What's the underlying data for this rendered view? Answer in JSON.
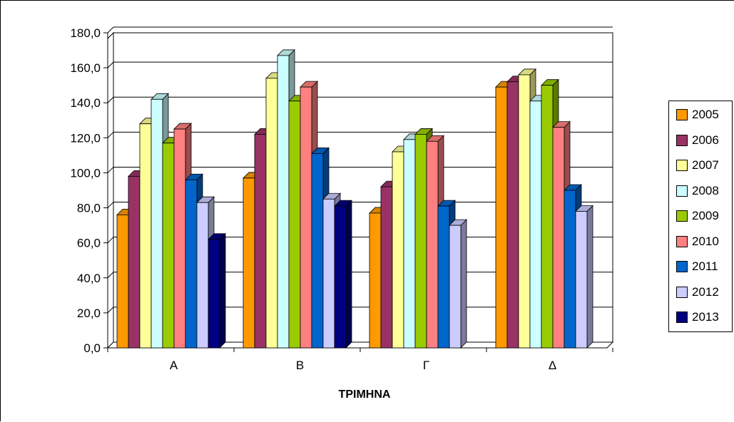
{
  "chart_data": {
    "type": "bar",
    "xlabel": "ΤΡΙΜΗΝΑ",
    "ylabel": "",
    "ylim": [
      0,
      180
    ],
    "yticks": [
      "0,0",
      "20,0",
      "40,0",
      "60,0",
      "80,0",
      "100,0",
      "120,0",
      "140,0",
      "160,0",
      "180,0"
    ],
    "categories": [
      "Α",
      "Β",
      "Γ",
      "Δ"
    ],
    "legend_position": "right",
    "grid": true,
    "series": [
      {
        "name": "2005",
        "color": "#FF9900",
        "values": [
          76,
          97,
          77,
          149
        ]
      },
      {
        "name": "2006",
        "color": "#993366",
        "values": [
          98,
          122,
          92,
          152
        ]
      },
      {
        "name": "2007",
        "color": "#FFFF99",
        "values": [
          128,
          154,
          112,
          156
        ]
      },
      {
        "name": "2008",
        "color": "#CCFFFF",
        "values": [
          142,
          167,
          119,
          141
        ]
      },
      {
        "name": "2009",
        "color": "#99CC00",
        "values": [
          117,
          141,
          122,
          150
        ]
      },
      {
        "name": "2010",
        "color": "#FF8080",
        "values": [
          125,
          149,
          118,
          126
        ]
      },
      {
        "name": "2011",
        "color": "#0066CC",
        "values": [
          96,
          111,
          81,
          90
        ]
      },
      {
        "name": "2012",
        "color": "#CCCCFF",
        "values": [
          83,
          85,
          70,
          78
        ]
      },
      {
        "name": "2013",
        "color": "#000080",
        "values": [
          62,
          81,
          null,
          null
        ]
      }
    ]
  }
}
